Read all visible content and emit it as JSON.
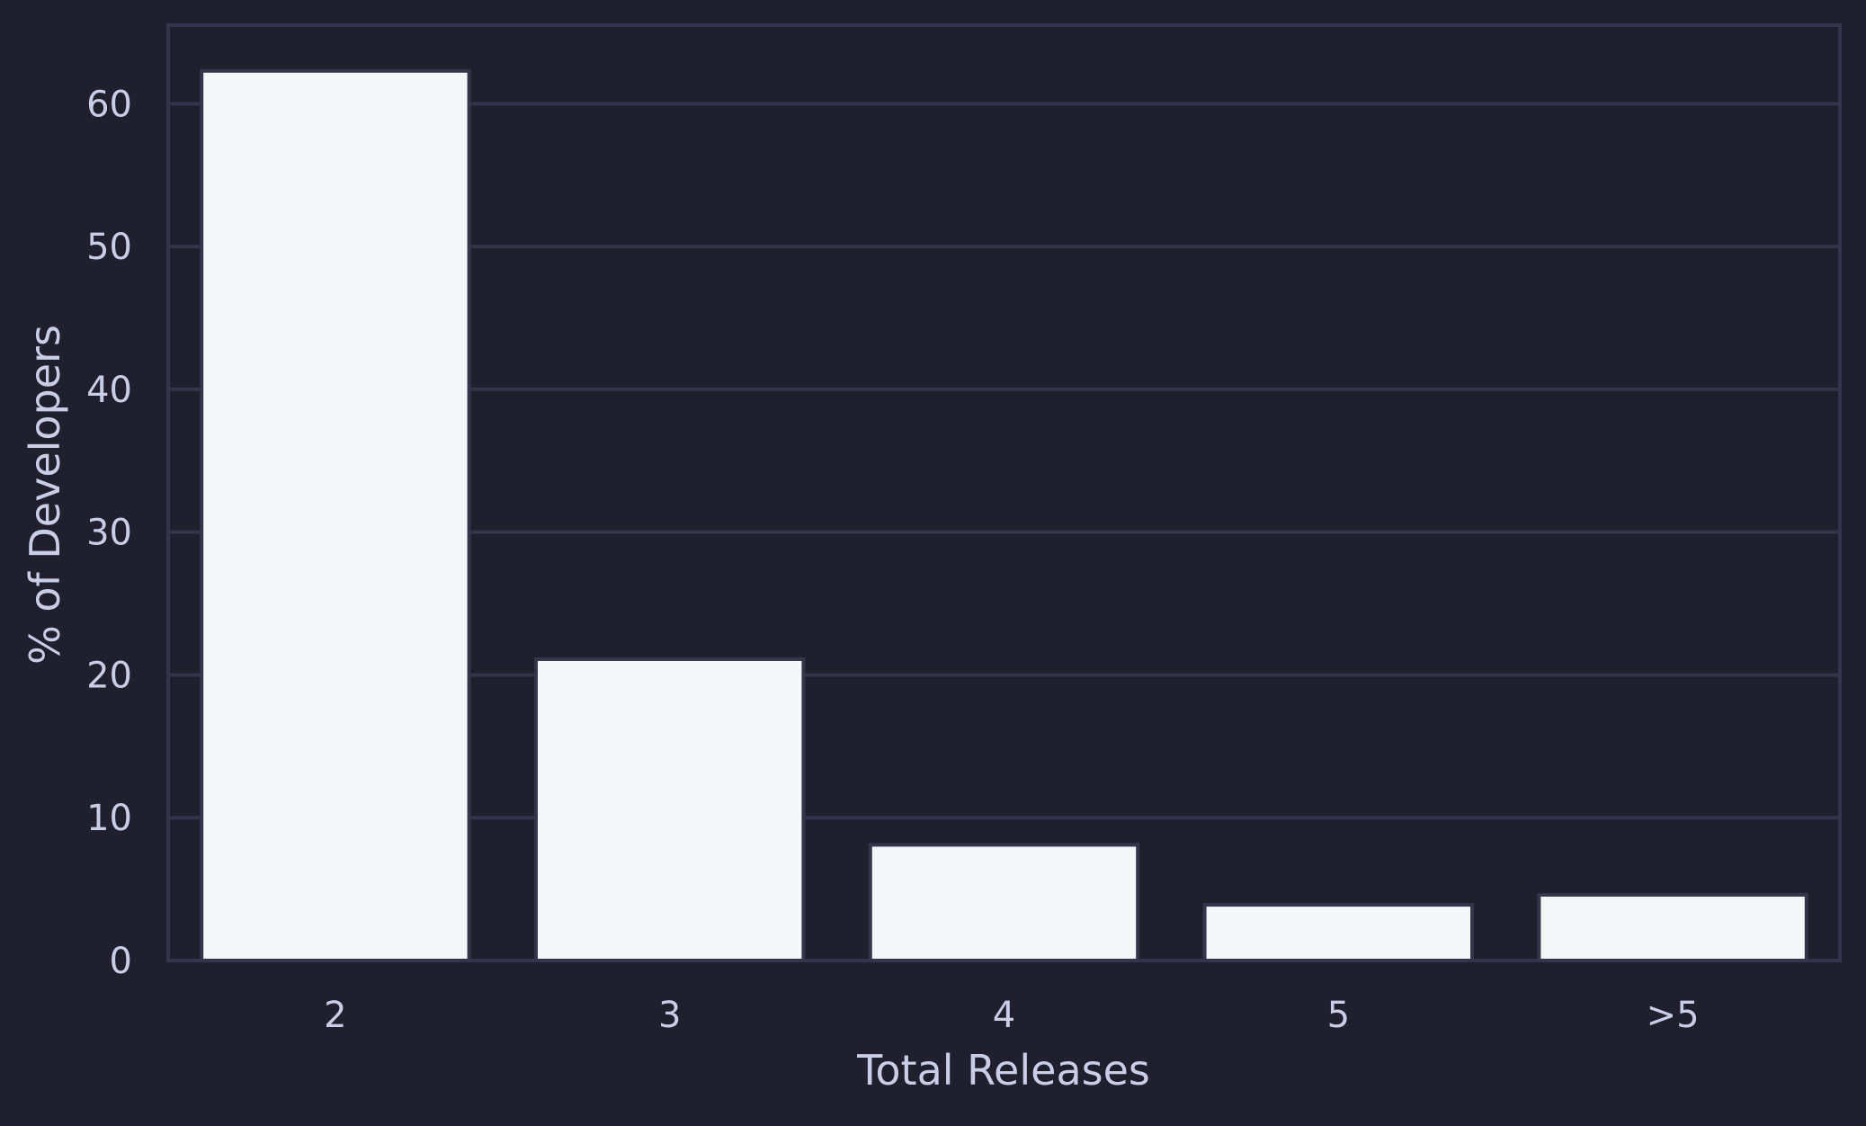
{
  "chart_data": {
    "type": "bar",
    "title": "",
    "xlabel": "Total Releases",
    "ylabel": "% of Developers",
    "categories": [
      "2",
      "3",
      "4",
      "5",
      ">5"
    ],
    "values": [
      62.3,
      21.1,
      8.1,
      3.9,
      4.6
    ],
    "ylim": [
      0,
      65.5
    ],
    "yticks": [
      0,
      10,
      20,
      30,
      40,
      50,
      60
    ],
    "grid": true,
    "colors": {
      "background": "#1f1f2e",
      "bar_fill": "#f5f6f8",
      "bar_stroke": "#34344a",
      "grid": "#34344a",
      "frame": "#34344a",
      "text": "#c9cde6"
    }
  }
}
